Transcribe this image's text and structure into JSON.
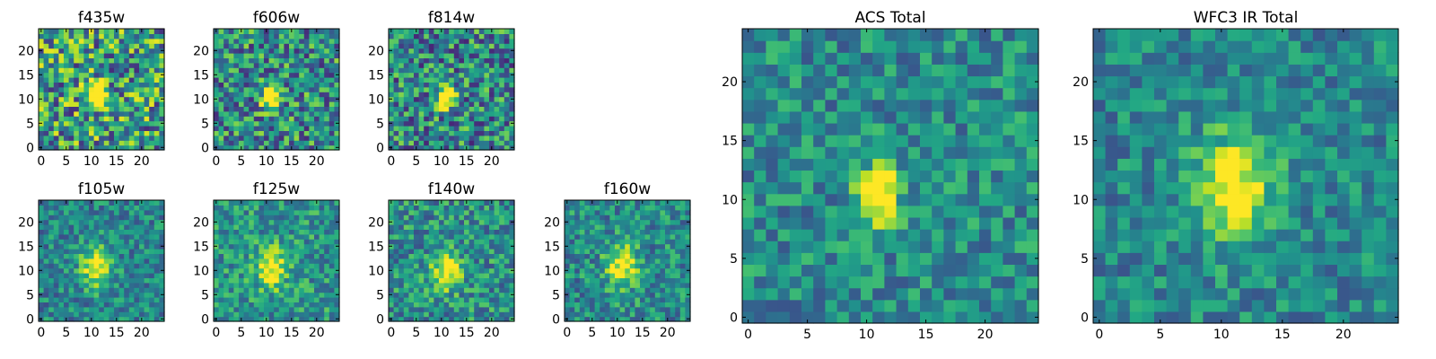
{
  "chart_data": [
    {
      "type": "heatmap",
      "title": "f435w",
      "grid": false,
      "legend": "none",
      "colormap": "viridis",
      "xticks": [
        "0",
        "5",
        "10",
        "15",
        "20"
      ],
      "yticks": [
        "0",
        "5",
        "10",
        "15",
        "20"
      ],
      "xlim": [
        -0.5,
        24.5
      ],
      "ylim": [
        -0.5,
        24.5
      ],
      "size": 25,
      "source": {
        "center": [
          11,
          11
        ],
        "spread": 1.4,
        "amp": 0.95
      },
      "noise": 0.42,
      "base": 0.55,
      "seed": 11
    },
    {
      "type": "heatmap",
      "title": "f606w",
      "grid": false,
      "legend": "none",
      "colormap": "viridis",
      "xticks": [
        "0",
        "5",
        "10",
        "15",
        "20"
      ],
      "yticks": [
        "0",
        "5",
        "10",
        "15",
        "20"
      ],
      "xlim": [
        -0.5,
        24.5
      ],
      "ylim": [
        -0.5,
        24.5
      ],
      "size": 25,
      "source": {
        "center": [
          11,
          10.5
        ],
        "spread": 1.4,
        "amp": 1.0
      },
      "noise": 0.36,
      "base": 0.48,
      "seed": 23
    },
    {
      "type": "heatmap",
      "title": "f814w",
      "grid": false,
      "legend": "none",
      "colormap": "viridis",
      "xticks": [
        "0",
        "5",
        "10",
        "15",
        "20"
      ],
      "yticks": [
        "0",
        "5",
        "10",
        "15",
        "20"
      ],
      "xlim": [
        -0.5,
        24.5
      ],
      "ylim": [
        -0.5,
        24.5
      ],
      "size": 25,
      "source": {
        "center": [
          11,
          10.5
        ],
        "spread": 1.3,
        "amp": 1.0
      },
      "noise": 0.36,
      "base": 0.46,
      "seed": 37
    },
    {
      "type": "heatmap",
      "title": "f105w",
      "grid": false,
      "legend": "none",
      "colormap": "viridis",
      "xticks": [
        "0",
        "5",
        "10",
        "15",
        "20"
      ],
      "yticks": [
        "0",
        "5",
        "10",
        "15",
        "20"
      ],
      "xlim": [
        -0.5,
        24.5
      ],
      "ylim": [
        -0.5,
        24.5
      ],
      "size": 25,
      "source": {
        "center": [
          11,
          11
        ],
        "spread": 2.6,
        "amp": 0.55
      },
      "noise": 0.22,
      "base": 0.45,
      "seed": 41
    },
    {
      "type": "heatmap",
      "title": "f125w",
      "grid": false,
      "legend": "none",
      "colormap": "viridis",
      "xticks": [
        "0",
        "5",
        "10",
        "15",
        "20"
      ],
      "yticks": [
        "0",
        "5",
        "10",
        "15",
        "20"
      ],
      "xlim": [
        -0.5,
        24.5
      ],
      "ylim": [
        -0.5,
        24.5
      ],
      "size": 25,
      "source": {
        "center": [
          11,
          10.5
        ],
        "spread": 2.4,
        "amp": 0.55
      },
      "noise": 0.24,
      "base": 0.52,
      "seed": 53
    },
    {
      "type": "heatmap",
      "title": "f140w",
      "grid": false,
      "legend": "none",
      "colormap": "viridis",
      "xticks": [
        "0",
        "5",
        "10",
        "15",
        "20"
      ],
      "yticks": [
        "0",
        "5",
        "10",
        "15",
        "20"
      ],
      "xlim": [
        -0.5,
        24.5
      ],
      "ylim": [
        -0.5,
        24.5
      ],
      "size": 25,
      "source": {
        "center": [
          11,
          10
        ],
        "spread": 2.2,
        "amp": 0.6
      },
      "noise": 0.26,
      "base": 0.5,
      "seed": 67
    },
    {
      "type": "heatmap",
      "title": "f160w",
      "grid": false,
      "legend": "none",
      "colormap": "viridis",
      "xticks": [
        "0",
        "5",
        "10",
        "15",
        "20"
      ],
      "yticks": [
        "0",
        "5",
        "10",
        "15",
        "20"
      ],
      "xlim": [
        -0.5,
        24.5
      ],
      "ylim": [
        -0.5,
        24.5
      ],
      "size": 25,
      "source": {
        "center": [
          11,
          11
        ],
        "spread": 2.6,
        "amp": 0.55
      },
      "noise": 0.24,
      "base": 0.48,
      "seed": 79
    },
    {
      "type": "heatmap",
      "title": "ACS Total",
      "grid": false,
      "legend": "none",
      "colormap": "viridis",
      "xticks": [
        "0",
        "5",
        "10",
        "15",
        "20"
      ],
      "yticks": [
        "0",
        "5",
        "10",
        "15",
        "20"
      ],
      "xlim": [
        -0.5,
        24.5
      ],
      "ylim": [
        -0.5,
        24.5
      ],
      "size": 25,
      "source": {
        "center": [
          11,
          10.5
        ],
        "spread": 1.3,
        "amp": 0.9
      },
      "noise": 0.22,
      "base": 0.48,
      "seed": 97
    },
    {
      "type": "heatmap",
      "title": "WFC3 IR Total",
      "grid": false,
      "legend": "none",
      "colormap": "viridis",
      "xticks": [
        "0",
        "5",
        "10",
        "15",
        "20"
      ],
      "yticks": [
        "0",
        "5",
        "10",
        "15",
        "20"
      ],
      "xlim": [
        -0.5,
        24.5
      ],
      "ylim": [
        -0.5,
        24.5
      ],
      "size": 25,
      "source": {
        "center": [
          11,
          11
        ],
        "spread": 2.6,
        "amp": 0.6
      },
      "noise": 0.2,
      "base": 0.46,
      "seed": 113
    }
  ]
}
